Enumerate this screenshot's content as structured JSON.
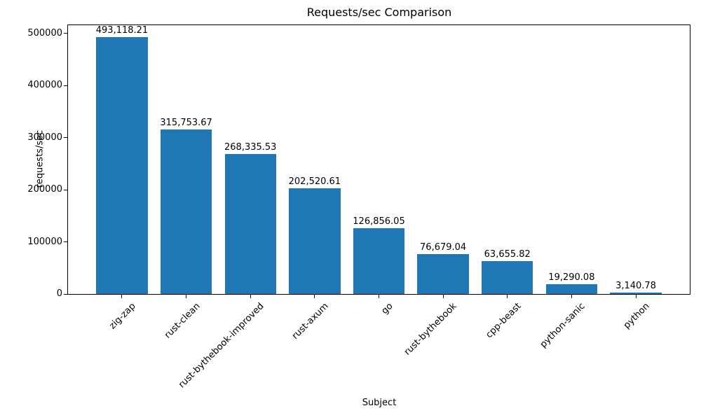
{
  "chart_data": {
    "type": "bar",
    "title": "Requests/sec Comparison",
    "xlabel": "Subject",
    "ylabel": "requests/sec",
    "categories": [
      "zig-zap",
      "rust-clean",
      "rust-bythebook-improved",
      "rust-axum",
      "go",
      "rust-bythebook",
      "cpp-beast",
      "python-sanic",
      "python"
    ],
    "values": [
      493118.21,
      315753.67,
      268335.53,
      202520.61,
      126856.05,
      76679.04,
      63655.82,
      19290.08,
      3140.78
    ],
    "bar_labels": [
      "493,118.21",
      "315,753.67",
      "268,335.53",
      "202,520.61",
      "126,856.05",
      "76,679.04",
      "63,655.82",
      "19,290.08",
      "3,140.78"
    ],
    "yticks": {
      "values": [
        0,
        100000,
        200000,
        300000,
        400000,
        500000
      ],
      "labels": [
        "0",
        "100000",
        "200000",
        "300000",
        "400000",
        "500000"
      ]
    },
    "ylim": [
      0,
      515500
    ],
    "xlim": [
      -0.84,
      8.84
    ],
    "bar_width_units": 0.8,
    "bar_color": "#1f77b4",
    "grid": false,
    "legend": "none"
  }
}
